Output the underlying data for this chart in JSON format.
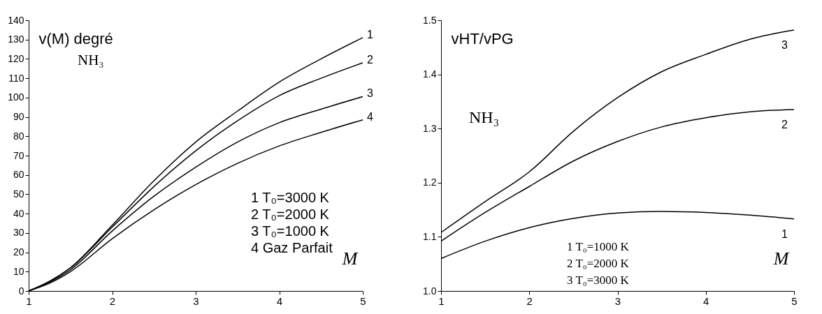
{
  "chart_data": [
    {
      "type": "line",
      "ylabel": "v(M) degré",
      "xlabel": "M",
      "x": [
        1,
        1.25,
        1.5,
        2,
        2.5,
        3,
        3.5,
        4,
        4.5,
        5
      ],
      "xlim": [
        1,
        5
      ],
      "ylim": [
        0,
        140
      ],
      "xticks": [
        1,
        2,
        3,
        4,
        5
      ],
      "yticks": [
        0,
        10,
        20,
        30,
        40,
        50,
        60,
        70,
        80,
        90,
        100,
        110,
        120,
        130,
        140
      ],
      "grid": false,
      "legend": false,
      "marker": "none",
      "line_style": "solid",
      "series": [
        {
          "name": "1",
          "color": "#000000",
          "values": [
            0,
            5,
            12,
            34,
            57,
            77,
            93,
            108,
            120,
            131
          ]
        },
        {
          "name": "2",
          "color": "#000000",
          "values": [
            0,
            5,
            12,
            33,
            54,
            72.5,
            88,
            101,
            110,
            118
          ]
        },
        {
          "name": "3",
          "color": "#000000",
          "values": [
            0,
            4.5,
            11,
            31,
            49,
            64,
            77,
            87,
            94,
            100.5
          ]
        },
        {
          "name": "4",
          "color": "#000000",
          "values": [
            0,
            4,
            10,
            27,
            42,
            55,
            66,
            75,
            82,
            88.5
          ]
        }
      ],
      "annotations": [
        "NH₃",
        "1   T₀=3000 K",
        "2   T₀=2000 K",
        "3   T₀=1000 K",
        "4   Gaz Parfait"
      ]
    },
    {
      "type": "line",
      "ylabel": "vHT/vPG",
      "xlabel": "M",
      "x": [
        1,
        1.5,
        2,
        2.5,
        3,
        3.5,
        4,
        4.5,
        5
      ],
      "xlim": [
        1,
        5
      ],
      "ylim": [
        1.0,
        1.5
      ],
      "xticks": [
        1,
        2,
        3,
        4,
        5
      ],
      "yticks": [
        {
          "value": 1.0,
          "label": "1.0"
        },
        {
          "value": 1.1,
          "label": "1.1"
        },
        {
          "value": 1.2,
          "label": "1.2"
        },
        {
          "value": 1.3,
          "label": "1.3"
        },
        {
          "value": 1.4,
          "label": "1.4"
        },
        {
          "value": 1.5,
          "label": "1.5"
        }
      ],
      "grid": false,
      "legend": false,
      "marker": "none",
      "line_style": "solid",
      "series": [
        {
          "name": "3",
          "color": "#000000",
          "values": [
            1.108,
            1.165,
            1.22,
            1.295,
            1.357,
            1.405,
            1.437,
            1.465,
            1.482
          ]
        },
        {
          "name": "2",
          "color": "#000000",
          "values": [
            1.092,
            1.145,
            1.193,
            1.24,
            1.276,
            1.303,
            1.32,
            1.331,
            1.335
          ]
        },
        {
          "name": "1",
          "color": "#000000",
          "values": [
            1.06,
            1.092,
            1.117,
            1.134,
            1.144,
            1.147,
            1.145,
            1.14,
            1.133
          ]
        }
      ],
      "annotations": [
        "NH₃",
        "1  T₀=1000 K",
        "2  T₀=2000 K",
        "3  T₀=3000 K"
      ]
    }
  ]
}
